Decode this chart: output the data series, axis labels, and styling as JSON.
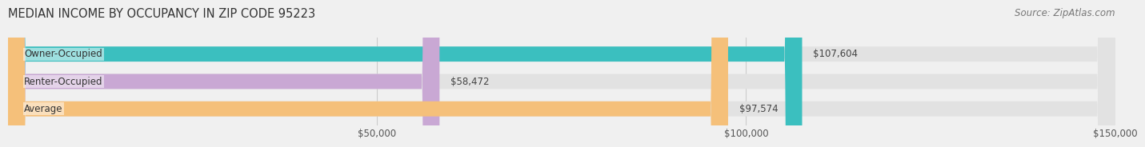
{
  "title": "MEDIAN INCOME BY OCCUPANCY IN ZIP CODE 95223",
  "source": "Source: ZipAtlas.com",
  "categories": [
    "Owner-Occupied",
    "Renter-Occupied",
    "Average"
  ],
  "values": [
    107604,
    58472,
    97574
  ],
  "bar_colors": [
    "#3bbfbf",
    "#c9a8d4",
    "#f5c07a"
  ],
  "value_labels": [
    "$107,604",
    "$58,472",
    "$97,574"
  ],
  "xlim": [
    0,
    150000
  ],
  "xticks": [
    0,
    50000,
    100000,
    150000
  ],
  "xtick_labels": [
    "$50,000",
    "$100,000",
    "$150,000"
  ],
  "background_color": "#f0f0f0",
  "bar_background_color": "#e2e2e2",
  "title_fontsize": 10.5,
  "source_fontsize": 8.5,
  "label_fontsize": 8.5,
  "value_fontsize": 8.5,
  "bar_height": 0.55
}
